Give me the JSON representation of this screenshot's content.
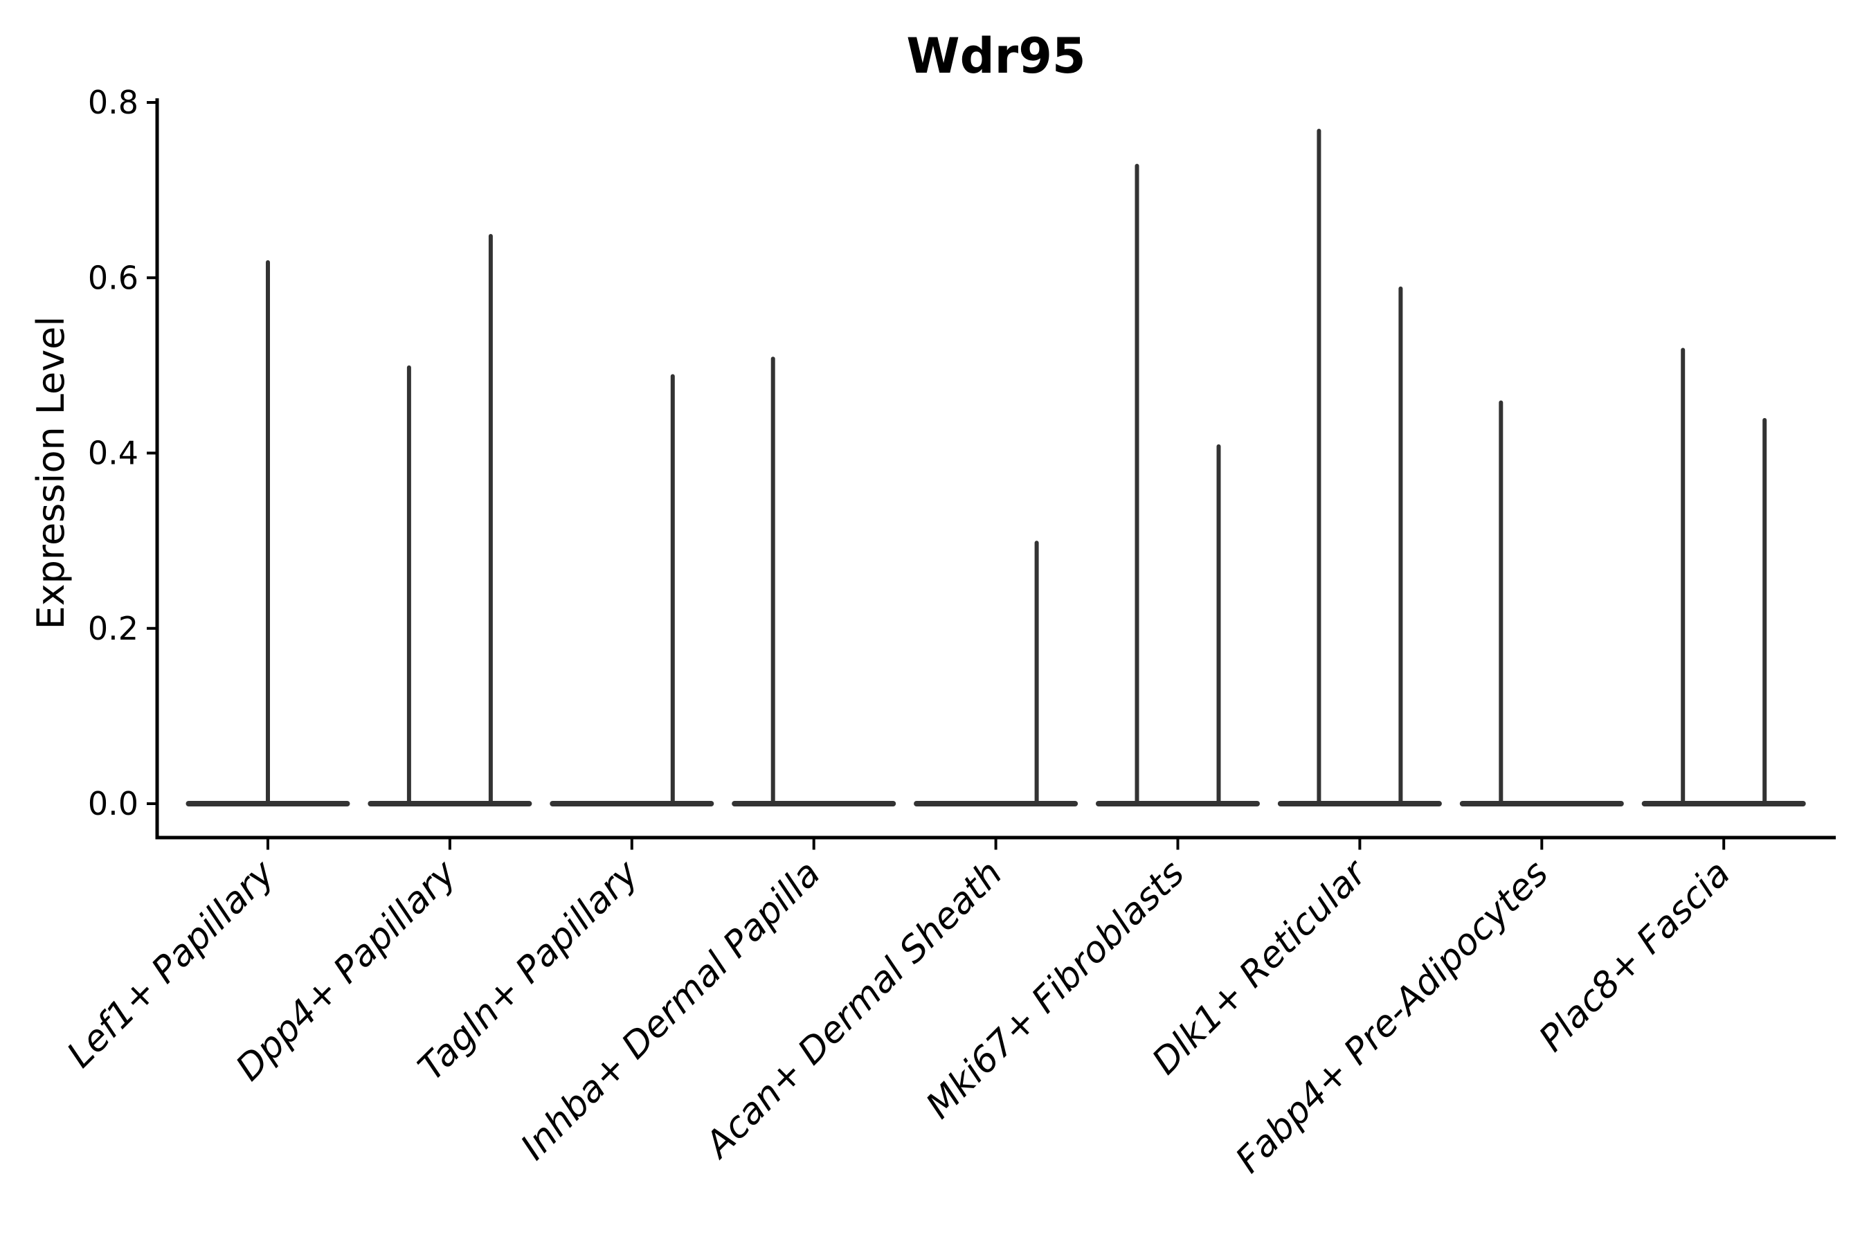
{
  "chart_data": {
    "type": "violin",
    "title": "Wdr95",
    "xlabel": "",
    "ylabel": "Expression Level",
    "ylim": [
      0,
      0.8
    ],
    "yticks": [
      "0.0",
      "0.2",
      "0.4",
      "0.6",
      "0.8"
    ],
    "ytick_values": [
      0.0,
      0.2,
      0.4,
      0.6,
      0.8
    ],
    "grid": false,
    "legend_position": "none",
    "style_note": "sparse single-cell expression violins: wide flat density pancake at 0 with thin vertical density spikes rising to the max expressed values; two dodged sub-violins per category (left/right), single-group categories centered",
    "categories": [
      "Lef1+ Papillary",
      "Dpp4+ Papillary",
      "Tagln+ Papillary",
      "Inhba+ Dermal Papilla",
      "Acan+ Dermal Sheath",
      "Mki67+ Fibroblasts",
      "Dlk1+ Reticular",
      "Fabp4+ Pre-Adipocytes",
      "Plac8+ Fascia"
    ],
    "violins": [
      {
        "category": "Lef1+ Papillary",
        "spikes": [
          {
            "position": "center",
            "max_value": 0.62
          }
        ]
      },
      {
        "category": "Dpp4+ Papillary",
        "spikes": [
          {
            "position": "left",
            "max_value": 0.5
          },
          {
            "position": "right",
            "max_value": 0.65
          }
        ]
      },
      {
        "category": "Tagln+ Papillary",
        "spikes": [
          {
            "position": "right",
            "max_value": 0.49
          }
        ]
      },
      {
        "category": "Inhba+ Dermal Papilla",
        "spikes": [
          {
            "position": "left",
            "max_value": 0.51
          }
        ]
      },
      {
        "category": "Acan+ Dermal Sheath",
        "spikes": [
          {
            "position": "right",
            "max_value": 0.3
          }
        ]
      },
      {
        "category": "Mki67+ Fibroblasts",
        "spikes": [
          {
            "position": "left",
            "max_value": 0.73
          },
          {
            "position": "right",
            "max_value": 0.41
          }
        ]
      },
      {
        "category": "Dlk1+ Reticular",
        "spikes": [
          {
            "position": "left",
            "max_value": 0.77
          },
          {
            "position": "right",
            "max_value": 0.59
          }
        ]
      },
      {
        "category": "Fabp4+ Pre-Adipocytes",
        "spikes": [
          {
            "position": "left",
            "max_value": 0.46
          }
        ]
      },
      {
        "category": "Plac8+ Fascia",
        "spikes": [
          {
            "position": "left",
            "max_value": 0.52
          },
          {
            "position": "right",
            "max_value": 0.44
          }
        ]
      }
    ],
    "colors": {
      "violin": "#333333",
      "axis": "#000000",
      "text": "#000000",
      "background": "#ffffff"
    }
  }
}
